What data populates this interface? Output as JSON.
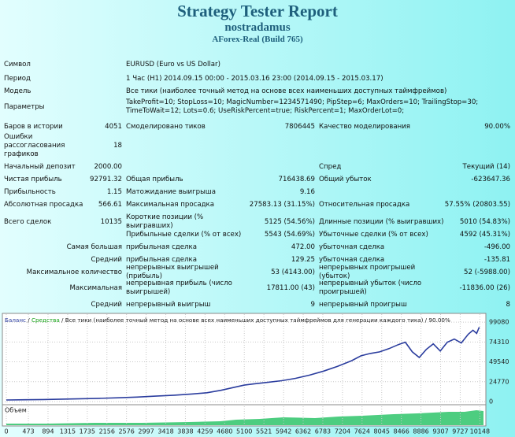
{
  "header": {
    "title": "Strategy Tester Report",
    "expert": "nostradamus",
    "server": "AForex-Real (Build 765)"
  },
  "rows": [
    [
      "Символ",
      "EURUSD (Euro vs US Dollar)"
    ],
    [
      "Период",
      "1 Час (H1) 2014.09.15 00:00 - 2015.03.16 23:00 (2014.09.15 - 2015.03.17)"
    ],
    [
      "Модель",
      "Все тики (наиболее точный метод на основе всех наименьших доступных таймфреймов)"
    ],
    [
      "Параметры",
      "TakeProfit=10; StopLoss=10; MagicNumber=1234571490; PipStep=6; MaxOrders=10; TrailingStop=30; TimeToWait=12; Lots=0.6; UseRiskPercent=true; RiskPercent=1; MaxOrderLot=0;"
    ],
    [
      "Баров в истории",
      "4051",
      "Смоделировано тиков",
      "7806445",
      "Качество моделирования",
      "90.00%"
    ],
    [
      "Ошибки рассогласования графиков",
      "18"
    ],
    [
      "Начальный депозит",
      "2000.00",
      "Спред",
      "Текущий (14)"
    ],
    [
      "Чистая прибыль",
      "92791.32",
      "Общая прибыль",
      "716438.69",
      "Общий убыток",
      "-623647.36"
    ],
    [
      "Прибыльность",
      "1.15",
      "Матожидание выигрыша",
      "9.16"
    ],
    [
      "Абсолютная просадка",
      "566.61",
      "Максимальная просадка",
      "27583.13 (31.15%)",
      "Относительная просадка",
      "57.55% (20803.55)"
    ],
    [
      "Всего сделок",
      "10135",
      "Короткие позиции (% выигравших)",
      "5125 (54.56%)",
      "Длинные позиции (% выигравших)",
      "5010 (54.83%)"
    ],
    [
      "Прибыльные сделки (% от всех)",
      "5543 (54.69%)",
      "Убыточные сделки (% от всех)",
      "4592 (45.31%)"
    ],
    [
      "Самая большая",
      "прибыльная сделка",
      "472.00",
      "убыточная сделка",
      "-496.00"
    ],
    [
      "Средний",
      "прибыльная сделка",
      "129.25",
      "убыточная сделка",
      "-135.81"
    ],
    [
      "Максимальное количество",
      "непрерывных выигрышей (прибыль)",
      "53 (4143.00)",
      "непрерывных проигрышей (убыток)",
      "52 (-5988.00)"
    ],
    [
      "Максимальная",
      "непрерывная прибыль (число выигрышей)",
      "17811.00 (43)",
      "непрерывный убыток (число проигрышей)",
      "-11836.00 (26)"
    ],
    [
      "Средний",
      "непрерывный выигрыш",
      "9",
      "непрерывный проигрыш",
      "8"
    ]
  ],
  "chart_data": {
    "type": "line",
    "series": [
      {
        "name": "Баланс",
        "color": "#2b3d9e",
        "x": [
          0,
          400,
          800,
          1200,
          1600,
          2000,
          2400,
          2800,
          3200,
          3600,
          4000,
          4300,
          4600,
          4900,
          5100,
          5300,
          5600,
          5900,
          6200,
          6500,
          6800,
          7100,
          7400,
          7600,
          7800,
          8000,
          8200,
          8400,
          8550,
          8700,
          8850,
          9000,
          9150,
          9300,
          9450,
          9600,
          9750,
          9900,
          10000,
          10080,
          10135
        ],
        "values": [
          2000,
          2300,
          2600,
          3000,
          3500,
          4000,
          4700,
          5600,
          6800,
          8000,
          9500,
          11000,
          14000,
          18000,
          20500,
          22000,
          24000,
          26000,
          29000,
          33000,
          38000,
          44000,
          51000,
          57000,
          60000,
          62000,
          66000,
          71000,
          74000,
          62000,
          55000,
          65000,
          72000,
          63000,
          74000,
          78000,
          73000,
          84000,
          89000,
          85000,
          92791
        ]
      }
    ],
    "separator": " / ",
    "equity_label": "Средства",
    "equity_color": "#14a014",
    "subtitle": "Все тики (наиболее точный метод на основе всех наименьших доступных таймфреймов для генерации каждого тика)",
    "quality": "90.00%",
    "volume_label": "Объем",
    "xlim": [
      0,
      10260
    ],
    "xticks": [
      0,
      473,
      894,
      1315,
      1735,
      2156,
      2576,
      2997,
      3418,
      3838,
      4259,
      4680,
      5100,
      5521,
      5942,
      6362,
      6783,
      7204,
      7624,
      8045,
      8466,
      8886,
      9307,
      9727,
      10148
    ],
    "ylim": [
      0,
      108000
    ],
    "yticks": [
      0,
      24770,
      49540,
      74310,
      99080
    ],
    "grid": true
  }
}
